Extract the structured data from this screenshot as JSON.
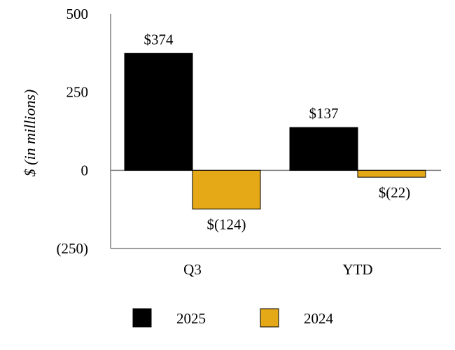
{
  "chart_data": {
    "type": "bar",
    "categories": [
      "Q3",
      "YTD"
    ],
    "series": [
      {
        "name": "2025",
        "values": [
          374,
          137
        ],
        "labels": [
          "$374",
          "$137"
        ],
        "color": "#000000"
      },
      {
        "name": "2024",
        "values": [
          -124,
          -22
        ],
        "labels": [
          "$(124)",
          "$(22)"
        ],
        "color": "#E5A817"
      }
    ],
    "title": "",
    "xlabel": "",
    "ylabel": "$ (in millions)",
    "ylim": [
      -250,
      500
    ],
    "yticks": [
      500,
      250,
      0,
      -250
    ],
    "ytick_labels": [
      "500",
      "250",
      "0",
      "(250)"
    ],
    "grid": false,
    "legend_position": "bottom"
  }
}
